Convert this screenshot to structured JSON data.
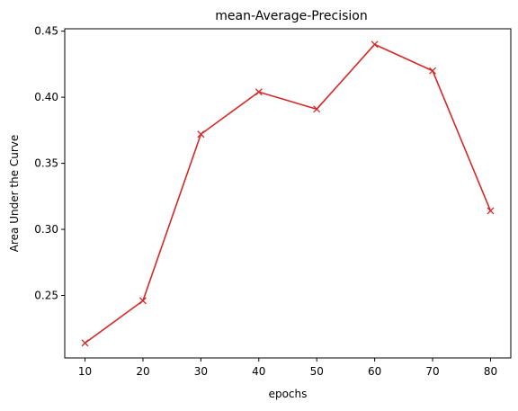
{
  "chart_data": {
    "type": "line",
    "title": "mean-Average-Precision",
    "xlabel": "epochs",
    "ylabel": "Area Under the Curve",
    "x": [
      10,
      20,
      30,
      40,
      50,
      60,
      70,
      80
    ],
    "series": [
      {
        "values": [
          0.214,
          0.246,
          0.372,
          0.404,
          0.391,
          0.44,
          0.42,
          0.314
        ],
        "color": "#d62728",
        "marker": "x"
      }
    ],
    "xticks": [
      "10",
      "20",
      "30",
      "40",
      "50",
      "60",
      "70",
      "80"
    ],
    "yticks": [
      "0.25",
      "0.30",
      "0.35",
      "0.40",
      "0.45"
    ],
    "xlim": [
      6.5,
      83.5
    ],
    "ylim": [
      0.2027,
      0.4518
    ],
    "grid": false
  }
}
